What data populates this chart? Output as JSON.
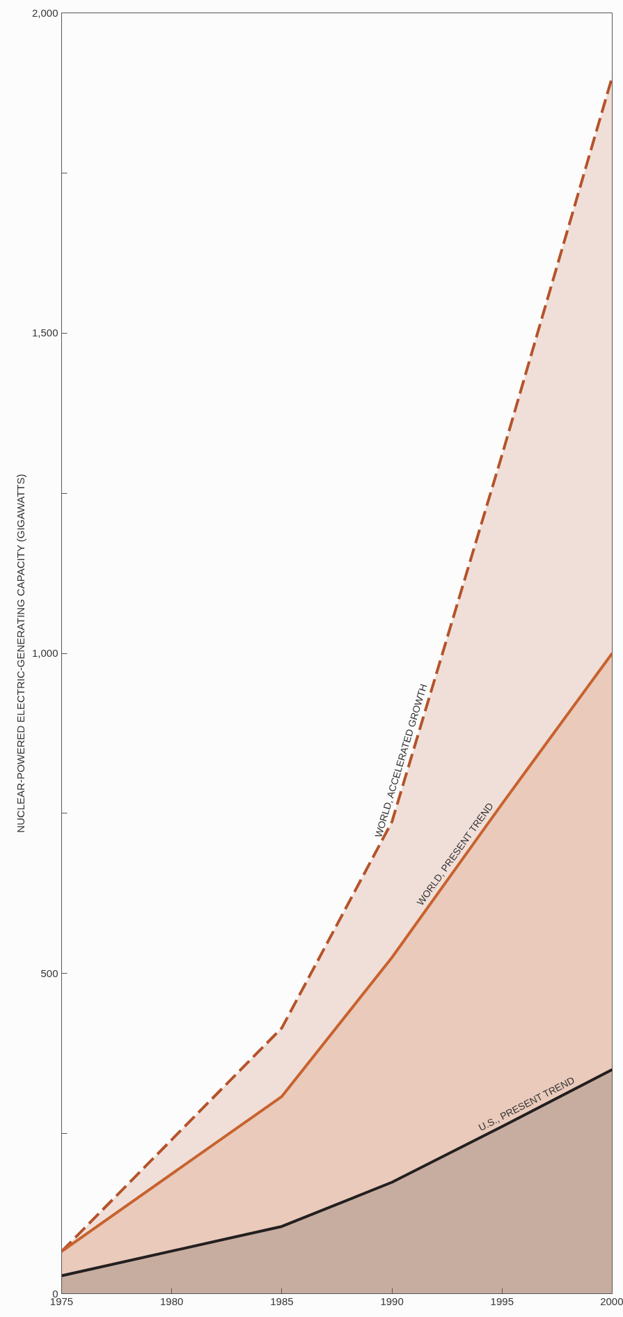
{
  "chart_data": {
    "type": "area",
    "ylabel": "NUCLEAR-POWERED ELECTRIC-GENERATING CAPACITY (GIGAWATTS)",
    "x": [
      1975,
      1985,
      1990,
      1995,
      2000
    ],
    "xlim": [
      1975,
      2000
    ],
    "xticks": [
      1975,
      1980,
      1985,
      1990,
      1995,
      2000
    ],
    "ylim": [
      0,
      2000
    ],
    "yticks": [
      0,
      {
        "value": 250,
        "label": null
      },
      {
        "value": 500,
        "label": "500"
      },
      {
        "value": 750,
        "label": null
      },
      {
        "value": 1000,
        "label": "1,000"
      },
      {
        "value": 1250,
        "label": null
      },
      {
        "value": 1500,
        "label": "1,500"
      },
      {
        "value": 1750,
        "label": null
      },
      {
        "value": 2000,
        "label": "2,000"
      }
    ],
    "grid": false,
    "series": [
      {
        "color": "#b5532a",
        "line_style": "dashed",
        "values": [
          66,
          415,
          737,
          1310,
          1900
        ]
      },
      {
        "color": "#c8622e",
        "line_style": "solid",
        "values": [
          66,
          308,
          525,
          765,
          1000
        ]
      },
      {
        "color": "#231f20",
        "line_style": "solid",
        "values": [
          28,
          105,
          174,
          261,
          350
        ]
      }
    ],
    "annotations": [
      "WORLD, ACCELERATED GROWTH",
      "WORLD, PRESENT TREND",
      "U.S., PRESENT TREND"
    ]
  }
}
